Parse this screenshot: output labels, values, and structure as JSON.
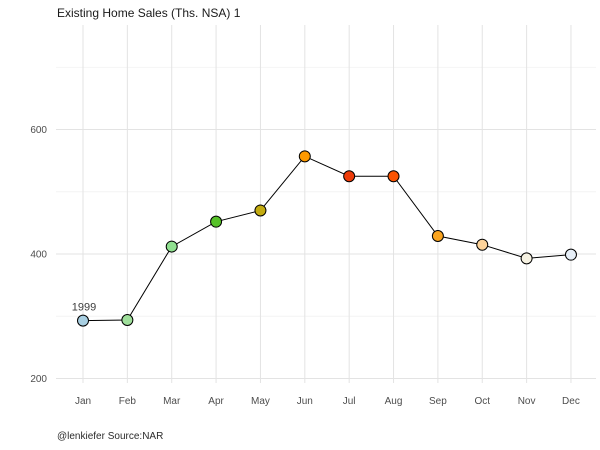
{
  "title": "Existing Home Sales (Ths. NSA) 1",
  "caption": "@lenkiefer Source:NAR",
  "chart_data": {
    "type": "line",
    "title": "Existing Home Sales (Ths. NSA) 1",
    "caption": "@lenkiefer Source:NAR",
    "xlabel": "",
    "ylabel": "",
    "categories": [
      "Jan",
      "Feb",
      "Mar",
      "Apr",
      "May",
      "Jun",
      "Jul",
      "Aug",
      "Sep",
      "Oct",
      "Nov",
      "Dec"
    ],
    "values": [
      293,
      294,
      412,
      452,
      470,
      557,
      525,
      525,
      429,
      415,
      393,
      399
    ],
    "point_colors": [
      "#a8cfe2",
      "#9fdf9b",
      "#90e090",
      "#57c229",
      "#c3ab10",
      "#fd9900",
      "#ee3c0a",
      "#fb5402",
      "#faa41f",
      "#fdd39a",
      "#f6f2e2",
      "#e7eff8"
    ],
    "y_major_ticks": [
      200,
      400,
      600
    ],
    "y_minor_ticks": [
      300,
      500,
      700
    ],
    "ylim": [
      196,
      768
    ],
    "grid": true,
    "legend_position": "none",
    "annotation": {
      "text": "1999",
      "category": "Jan"
    },
    "colors": {
      "line": "#000000",
      "point_stroke": "#000000",
      "grid_major": "#e3e3e3",
      "grid_minor": "#f4f4f4",
      "tick_label": "#4d4d4d",
      "annotation_text": "#3c3c3c",
      "background": "#ffffff"
    }
  }
}
